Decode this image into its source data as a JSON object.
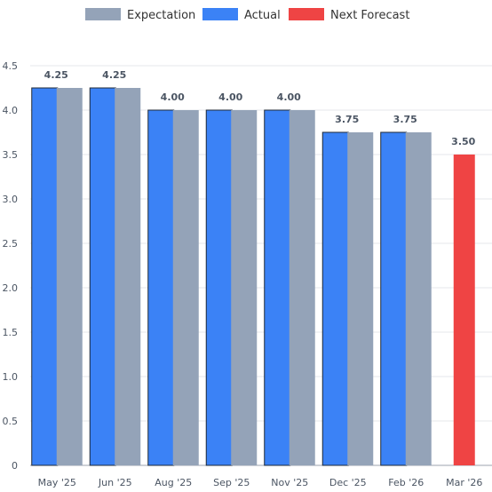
{
  "chart_data": {
    "type": "bar",
    "categories": [
      "May '25",
      "Jun '25",
      "Aug '25",
      "Sep '25",
      "Nov '25",
      "Dec '25",
      "Feb '26",
      "Mar '26"
    ],
    "series": [
      {
        "name": "Actual",
        "color": "#3b82f6",
        "values": [
          4.25,
          4.25,
          4.0,
          4.0,
          4.0,
          3.75,
          3.75,
          null
        ]
      },
      {
        "name": "Expectation",
        "color": "#94a3b8",
        "values": [
          4.25,
          4.25,
          4.0,
          4.0,
          4.0,
          3.75,
          3.75,
          null
        ]
      },
      {
        "name": "Next Forecast",
        "color": "#ef4444",
        "values": [
          null,
          null,
          null,
          null,
          null,
          null,
          null,
          3.5
        ]
      }
    ],
    "data_labels": [
      "4.25",
      "4.25",
      "4.00",
      "4.00",
      "4.00",
      "3.75",
      "3.75",
      "3.50"
    ],
    "legend": {
      "position": "top-center",
      "order": [
        "Expectation",
        "Actual",
        "Next Forecast"
      ]
    },
    "y_ticks": [
      "0",
      "0.5",
      "1.0",
      "1.5",
      "2.0",
      "2.5",
      "3.0",
      "3.5",
      "4.0",
      "4.5"
    ],
    "y_tick_values": [
      0,
      0.5,
      1.0,
      1.5,
      2.0,
      2.5,
      3.0,
      3.5,
      4.0,
      4.5
    ],
    "ylim": [
      0,
      4.5
    ],
    "grid": true,
    "title": "",
    "xlabel": "",
    "ylabel": ""
  }
}
